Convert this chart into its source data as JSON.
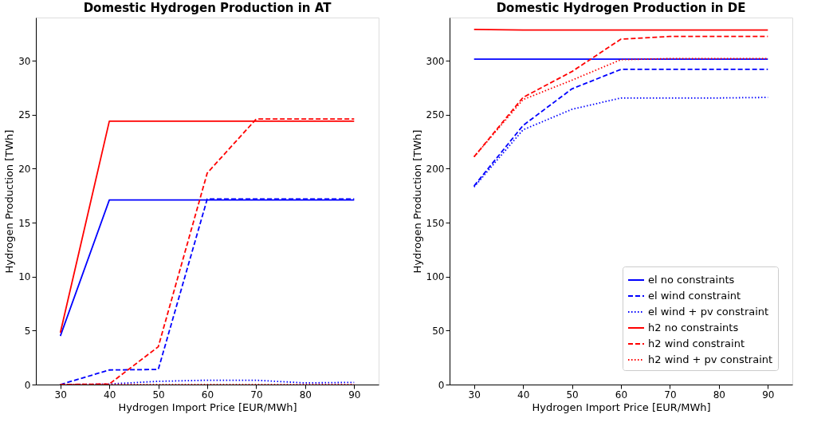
{
  "chart_data": [
    {
      "type": "line",
      "title": "Domestic Hydrogen Production in AT",
      "xlabel": "Hydrogen Import Price [EUR/MWh]",
      "ylabel": "Hydrogen Production [TWh]",
      "x": [
        30,
        40,
        50,
        60,
        70,
        80,
        90
      ],
      "xlim": [
        25,
        95
      ],
      "xticks": [
        30,
        40,
        50,
        60,
        70,
        80,
        90
      ],
      "ylim": [
        0,
        34
      ],
      "yticks": [
        0,
        5,
        10,
        15,
        20,
        25,
        30
      ],
      "grid": false,
      "legend": false,
      "marker": "none",
      "series": [
        {
          "color": "#0000ff",
          "line_style": "solid",
          "values": [
            4.5,
            17.1,
            17.1,
            17.1,
            17.1,
            17.1,
            17.1
          ]
        },
        {
          "color": "#0000ff",
          "line_style": "dashed",
          "values": [
            0,
            1.35,
            1.4,
            17.2,
            17.2,
            17.2,
            17.2
          ]
        },
        {
          "color": "#0000ff",
          "line_style": "dotted",
          "values": [
            0,
            0.05,
            0.3,
            0.4,
            0.4,
            0.15,
            0.2
          ]
        },
        {
          "color": "#ff0000",
          "line_style": "solid",
          "values": [
            4.8,
            24.4,
            24.4,
            24.4,
            24.4,
            24.4,
            24.4
          ]
        },
        {
          "color": "#ff0000",
          "line_style": "dashed",
          "values": [
            0,
            0.05,
            3.5,
            19.6,
            24.6,
            24.6,
            24.6
          ]
        },
        {
          "color": "#ff0000",
          "line_style": "dotted",
          "values": [
            0,
            0,
            0,
            0,
            0,
            0,
            0
          ]
        }
      ]
    },
    {
      "type": "line",
      "title": "Domestic Hydrogen Production in DE",
      "xlabel": "Hydrogen Import Price [EUR/MWh]",
      "ylabel": "Hydrogen Production [TWh]",
      "x": [
        30,
        40,
        50,
        60,
        70,
        80,
        90
      ],
      "xlim": [
        25,
        95
      ],
      "xticks": [
        30,
        40,
        50,
        60,
        70,
        80,
        90
      ],
      "ylim": [
        0,
        340
      ],
      "yticks": [
        0,
        50,
        100,
        150,
        200,
        250,
        300
      ],
      "grid": false,
      "legend": "bottom right",
      "marker": "none",
      "series": [
        {
          "name": "el no constraints",
          "color": "#0000ff",
          "line_style": "solid",
          "values": [
            301.5,
            301.5,
            301.5,
            301.5,
            301.5,
            301.5,
            301.5
          ]
        },
        {
          "name": "el wind constraint",
          "color": "#0000ff",
          "line_style": "dashed",
          "values": [
            184,
            240,
            274,
            292,
            292,
            292,
            292
          ]
        },
        {
          "name": "el wind + pv constraint",
          "color": "#0000ff",
          "line_style": "dotted",
          "values": [
            183,
            236,
            255,
            265.5,
            265.5,
            265.5,
            266
          ]
        },
        {
          "name": "h2 no constraints",
          "color": "#ff0000",
          "line_style": "solid",
          "values": [
            329,
            328.5,
            328.5,
            328.5,
            328.5,
            328.5,
            328.5
          ]
        },
        {
          "name": "h2 wind constraint",
          "color": "#ff0000",
          "line_style": "dashed",
          "values": [
            211,
            266,
            290,
            320,
            322.5,
            322.5,
            322.5
          ]
        },
        {
          "name": "h2 wind + pv constraint",
          "color": "#ff0000",
          "line_style": "dotted",
          "values": [
            211,
            264,
            282,
            301,
            302,
            302,
            302
          ]
        }
      ]
    }
  ]
}
